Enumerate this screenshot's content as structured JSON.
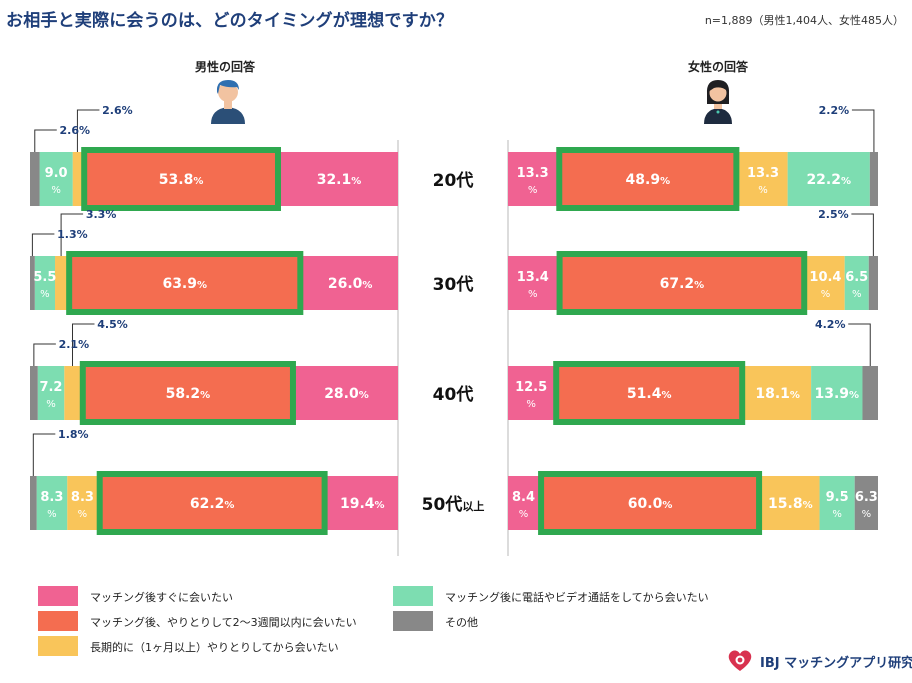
{
  "header": {
    "title": "お相手と実際に会うのは、どのタイミングが理想ですか？",
    "note": "n=1,889（男性1,404人、女性485人）"
  },
  "columns": {
    "male": "男性の回答",
    "female": "女性の回答"
  },
  "chart_data": {
    "type": "bar",
    "orientation": "horizontal",
    "stacked": true,
    "unit": "%",
    "categories": [
      "20代",
      "30代",
      "40代",
      "50代以上"
    ],
    "colors": {
      "immediately": "#f06292",
      "within_2_3_weeks": "#f46d50",
      "long_term": "#f9c55a",
      "after_call": "#7dddb1",
      "other": "#888888",
      "highlight": "#2fa84f"
    },
    "panels": [
      {
        "gender": "male",
        "order": [
          "immediately",
          "within_2_3_weeks",
          "long_term",
          "after_call",
          "other"
        ],
        "rows": [
          {
            "immediately": 32.1,
            "within_2_3_weeks": 53.8,
            "long_term": 2.6,
            "after_call": 9.0,
            "other": 2.6
          },
          {
            "immediately": 26.0,
            "within_2_3_weeks": 63.9,
            "long_term": 3.3,
            "after_call": 5.5,
            "other": 1.3
          },
          {
            "immediately": 28.0,
            "within_2_3_weeks": 58.2,
            "long_term": 4.5,
            "after_call": 7.2,
            "other": 2.1
          },
          {
            "immediately": 19.4,
            "within_2_3_weeks": 62.2,
            "long_term": 8.3,
            "after_call": 8.3,
            "other": 1.8
          }
        ]
      },
      {
        "gender": "female",
        "order": [
          "immediately",
          "within_2_3_weeks",
          "long_term",
          "after_call",
          "other"
        ],
        "rows": [
          {
            "immediately": 13.3,
            "within_2_3_weeks": 48.9,
            "long_term": 13.3,
            "after_call": 22.2,
            "other": 2.2
          },
          {
            "immediately": 13.4,
            "within_2_3_weeks": 67.2,
            "long_term": 10.4,
            "after_call": 6.5,
            "other": 2.5
          },
          {
            "immediately": 12.5,
            "within_2_3_weeks": 51.4,
            "long_term": 18.1,
            "after_call": 13.9,
            "other": 4.2
          },
          {
            "immediately": 8.4,
            "within_2_3_weeks": 60.0,
            "long_term": 15.8,
            "after_call": 9.5,
            "other": 6.3
          }
        ]
      }
    ],
    "highlight_series": "within_2_3_weeks",
    "legend": [
      {
        "key": "immediately",
        "label": "マッチング後すぐに会いたい"
      },
      {
        "key": "within_2_3_weeks",
        "label": "マッチング後、やりとりして2～3週間以内に会いたい"
      },
      {
        "key": "long_term",
        "label": "長期的に（1ヶ月以上）やりとりしてから会いたい"
      },
      {
        "key": "after_call",
        "label": "マッチング後に電話やビデオ通話をしてから会いたい"
      },
      {
        "key": "other",
        "label": "その他"
      }
    ]
  },
  "brand": {
    "name": "IBJ マッチングアプリ研究室"
  }
}
